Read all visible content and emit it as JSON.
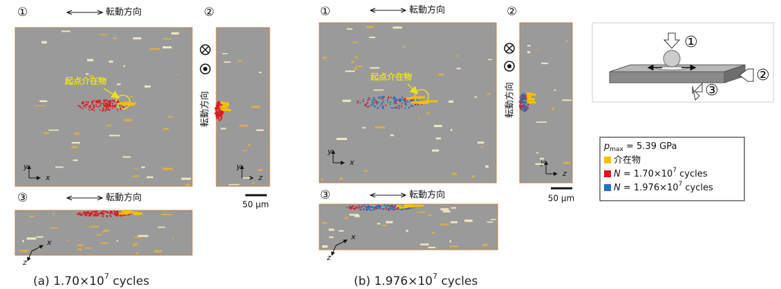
{
  "panels": [
    {
      "views": [
        "①",
        "②",
        "③"
      ],
      "direction": "転動方向",
      "origin_label": "起点介在物",
      "axes": {
        "x": "x",
        "y": "y",
        "z": "z"
      },
      "scale": "50 μm",
      "caption": {
        "prefix": "(a)  1.70×10",
        "exp": "7",
        "suffix": " cycles"
      }
    },
    {
      "views": [
        "①",
        "②",
        "③"
      ],
      "direction": "転動方向",
      "origin_label": "起点介在物",
      "axes": {
        "x": "x",
        "y": "y",
        "z": "z"
      },
      "scale": "50 μm",
      "caption": {
        "prefix": "(b) 1.976×10",
        "exp": "7",
        "suffix": " cycles"
      }
    }
  ],
  "diagram": {
    "labels": [
      "①",
      "②",
      "③"
    ]
  },
  "legend": {
    "pmax": {
      "symbol": "p",
      "sub": "max",
      "text": " = 5.39 GPa"
    },
    "items": [
      {
        "name": "介在物",
        "color": "#f5c000"
      },
      {
        "symbol": "N",
        "text": " = 1.70×10",
        "exp": "7",
        "suffix": " cycles",
        "color": "#e0141e"
      },
      {
        "symbol": "N",
        "text": " = 1.976×10",
        "exp": "7",
        "suffix": " cycles",
        "color": "#1f6fc8"
      }
    ]
  }
}
